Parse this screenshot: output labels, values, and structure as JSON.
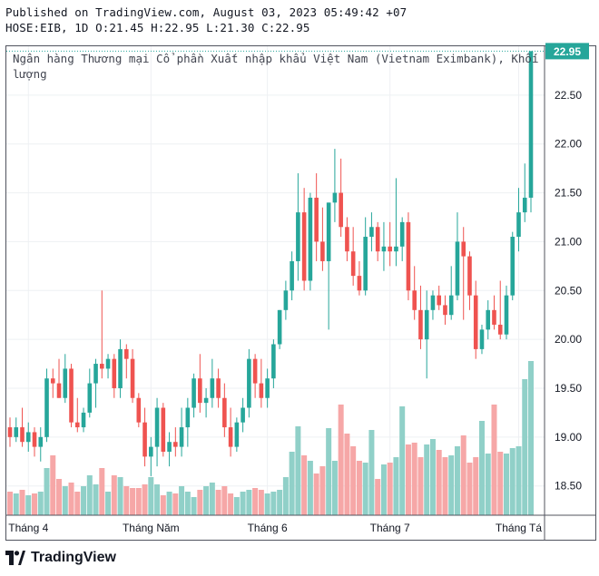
{
  "header": {
    "line1": "Published on TradingView.com, August 03, 2023 05:49:42 +07",
    "line2": "HOSE:EIB, 1D O:21.45 H:22.95 L:21.30 C:22.95"
  },
  "footer": {
    "brand": "TradingView"
  },
  "colors": {
    "up": "#26a69a",
    "down": "#ef5350",
    "vol_up": "#90d0c8",
    "vol_down": "#f6a7a7",
    "price_tag": "#26a69a",
    "grid": "#eef0f3"
  },
  "chart_data": {
    "type": "candlestick",
    "title": "Ngân hàng Thương mại Cổ phần Xuất nhập khẩu Việt Nam (Vietnam Eximbank), Khối lượng",
    "symbol": "HOSE:EIB",
    "interval": "1D",
    "last_price": "22.95",
    "y_ticks": [
      "18.50",
      "19.00",
      "19.50",
      "20.00",
      "20.50",
      "21.00",
      "21.50",
      "22.00",
      "22.50"
    ],
    "ylim": [
      18.2,
      23.0
    ],
    "x_labels": [
      {
        "label": "Tháng 4",
        "index": 3
      },
      {
        "label": "Tháng Năm",
        "index": 23
      },
      {
        "label": "Tháng 6",
        "index": 42
      },
      {
        "label": "Tháng 7",
        "index": 62
      },
      {
        "label": "Tháng Tá",
        "index": 83
      }
    ],
    "grid": true,
    "ohlc": [
      [
        19.1,
        19.2,
        18.9,
        19.0
      ],
      [
        19.0,
        19.2,
        18.95,
        19.1
      ],
      [
        19.1,
        19.3,
        18.9,
        18.95
      ],
      [
        18.95,
        19.15,
        18.85,
        19.05
      ],
      [
        19.05,
        19.1,
        18.8,
        18.9
      ],
      [
        18.9,
        19.1,
        18.75,
        19.0
      ],
      [
        19.0,
        19.7,
        18.95,
        19.6
      ],
      [
        19.6,
        19.7,
        19.4,
        19.55
      ],
      [
        19.55,
        19.8,
        19.4,
        19.4
      ],
      [
        19.4,
        19.85,
        19.35,
        19.7
      ],
      [
        19.7,
        19.75,
        19.1,
        19.15
      ],
      [
        19.15,
        19.4,
        19.05,
        19.1
      ],
      [
        19.1,
        19.3,
        19.05,
        19.25
      ],
      [
        19.25,
        19.7,
        19.2,
        19.55
      ],
      [
        19.55,
        19.8,
        19.3,
        19.75
      ],
      [
        19.75,
        20.5,
        19.6,
        19.7
      ],
      [
        19.7,
        19.85,
        19.6,
        19.8
      ],
      [
        19.8,
        19.85,
        19.4,
        19.5
      ],
      [
        19.5,
        20.0,
        19.4,
        19.9
      ],
      [
        19.9,
        19.95,
        19.6,
        19.8
      ],
      [
        19.8,
        19.9,
        19.35,
        19.4
      ],
      [
        19.4,
        19.45,
        19.1,
        19.15
      ],
      [
        19.15,
        19.3,
        18.7,
        18.8
      ],
      [
        18.8,
        19.0,
        18.6,
        18.9
      ],
      [
        18.9,
        19.4,
        18.7,
        19.3
      ],
      [
        19.3,
        19.35,
        18.8,
        18.85
      ],
      [
        18.85,
        19.05,
        18.7,
        18.95
      ],
      [
        18.95,
        19.1,
        18.8,
        18.9
      ],
      [
        18.9,
        19.3,
        18.8,
        19.1
      ],
      [
        19.1,
        19.4,
        18.9,
        19.3
      ],
      [
        19.3,
        19.65,
        19.2,
        19.6
      ],
      [
        19.6,
        19.85,
        19.25,
        19.35
      ],
      [
        19.35,
        19.5,
        19.2,
        19.4
      ],
      [
        19.4,
        19.8,
        19.3,
        19.6
      ],
      [
        19.6,
        19.7,
        19.3,
        19.4
      ],
      [
        19.4,
        19.55,
        19.0,
        19.1
      ],
      [
        19.1,
        19.3,
        18.8,
        18.9
      ],
      [
        18.9,
        19.2,
        18.85,
        19.15
      ],
      [
        19.15,
        19.4,
        19.05,
        19.3
      ],
      [
        19.3,
        19.9,
        19.2,
        19.8
      ],
      [
        19.8,
        19.85,
        19.4,
        19.55
      ],
      [
        19.55,
        19.8,
        19.3,
        19.4
      ],
      [
        19.4,
        19.7,
        19.3,
        19.6
      ],
      [
        19.6,
        20.0,
        19.5,
        19.95
      ],
      [
        19.95,
        20.3,
        19.9,
        20.3
      ],
      [
        20.3,
        20.6,
        20.2,
        20.5
      ],
      [
        20.5,
        20.9,
        20.4,
        20.8
      ],
      [
        20.8,
        21.7,
        20.6,
        21.3
      ],
      [
        21.3,
        21.55,
        20.5,
        20.6
      ],
      [
        20.6,
        21.5,
        20.5,
        21.45
      ],
      [
        21.45,
        21.7,
        20.8,
        21.0
      ],
      [
        21.0,
        21.35,
        20.7,
        20.8
      ],
      [
        20.8,
        21.4,
        20.1,
        21.4
      ],
      [
        21.4,
        21.95,
        21.2,
        21.5
      ],
      [
        21.5,
        21.85,
        21.05,
        21.15
      ],
      [
        21.15,
        21.25,
        20.8,
        20.9
      ],
      [
        20.9,
        21.15,
        20.55,
        20.65
      ],
      [
        20.65,
        20.8,
        20.45,
        20.5
      ],
      [
        20.5,
        21.25,
        20.45,
        21.05
      ],
      [
        21.05,
        21.3,
        20.9,
        21.15
      ],
      [
        21.15,
        21.2,
        20.8,
        20.9
      ],
      [
        20.9,
        21.2,
        20.7,
        20.95
      ],
      [
        20.95,
        21.2,
        20.75,
        20.9
      ],
      [
        20.9,
        21.65,
        20.75,
        20.95
      ],
      [
        20.95,
        21.25,
        20.8,
        21.2
      ],
      [
        21.2,
        21.3,
        20.4,
        20.5
      ],
      [
        20.5,
        20.75,
        20.2,
        20.3
      ],
      [
        20.3,
        20.55,
        19.9,
        20.0
      ],
      [
        20.0,
        20.5,
        19.6,
        20.3
      ],
      [
        20.3,
        20.5,
        20.2,
        20.45
      ],
      [
        20.45,
        20.55,
        20.3,
        20.35
      ],
      [
        20.35,
        20.45,
        20.15,
        20.25
      ],
      [
        20.25,
        20.75,
        20.2,
        20.45
      ],
      [
        20.45,
        21.3,
        20.4,
        21.0
      ],
      [
        21.0,
        21.15,
        20.2,
        20.85
      ],
      [
        20.85,
        20.9,
        20.3,
        20.45
      ],
      [
        20.45,
        20.6,
        19.8,
        19.9
      ],
      [
        19.9,
        20.15,
        19.85,
        20.1
      ],
      [
        20.1,
        20.4,
        20.0,
        20.3
      ],
      [
        20.3,
        20.45,
        20.1,
        20.15
      ],
      [
        20.15,
        20.6,
        20.0,
        20.05
      ],
      [
        20.05,
        20.55,
        20.0,
        20.45
      ],
      [
        20.45,
        21.1,
        20.4,
        21.05
      ],
      [
        21.05,
        21.55,
        20.9,
        21.3
      ],
      [
        21.3,
        21.8,
        21.2,
        21.45
      ],
      [
        21.45,
        22.95,
        21.3,
        22.95
      ]
    ],
    "volume_relative": [
      0.13,
      0.12,
      0.14,
      0.11,
      0.12,
      0.13,
      0.26,
      0.33,
      0.2,
      0.16,
      0.18,
      0.13,
      0.16,
      0.22,
      0.17,
      0.26,
      0.13,
      0.22,
      0.21,
      0.16,
      0.15,
      0.15,
      0.17,
      0.21,
      0.17,
      0.11,
      0.13,
      0.12,
      0.16,
      0.13,
      0.1,
      0.14,
      0.16,
      0.18,
      0.14,
      0.16,
      0.12,
      0.1,
      0.13,
      0.14,
      0.15,
      0.14,
      0.12,
      0.13,
      0.14,
      0.21,
      0.35,
      0.49,
      0.33,
      0.3,
      0.23,
      0.27,
      0.48,
      0.3,
      0.61,
      0.45,
      0.38,
      0.3,
      0.29,
      0.47,
      0.2,
      0.28,
      0.29,
      0.32,
      0.6,
      0.39,
      0.4,
      0.32,
      0.39,
      0.42,
      0.36,
      0.32,
      0.33,
      0.38,
      0.44,
      0.29,
      0.32,
      0.52,
      0.34,
      0.61,
      0.35,
      0.34,
      0.37,
      0.38,
      0.75,
      0.85
    ]
  }
}
